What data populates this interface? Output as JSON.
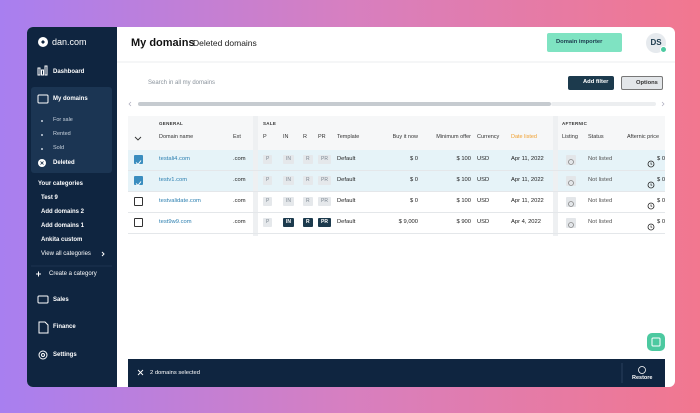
{
  "sidebar": {
    "brand": "dan.com",
    "dashboard": "Dashboard",
    "my_domains": "My domains",
    "sub_items": [
      "For sale",
      "Rented",
      "Sold",
      "Deleted"
    ],
    "categories_heading": "Your categories",
    "categories": [
      "Test 9",
      "Add domains 2",
      "Add domains 1",
      "Ankita custom"
    ],
    "view_all": "View all categories",
    "create": "Create a category",
    "bottom": [
      "Sales",
      "Finance",
      "Settings"
    ]
  },
  "header": {
    "title": "My domains",
    "subtitle": "Deleted domains",
    "importer": "Domain importer",
    "avatar": "DS"
  },
  "toolbar": {
    "search_placeholder": "Search in all my domains",
    "add_filter": "Add filter",
    "options": "Options"
  },
  "table": {
    "groups": [
      "GENERAL",
      "SALE",
      "AFTERNIC"
    ],
    "columns": [
      "Domain name",
      "Ext",
      "P",
      "IN",
      "R",
      "PR",
      "Template",
      "Buy it now",
      "Minimum offer",
      "Currency",
      "Date listed",
      "Listing",
      "Status",
      "Afternic price"
    ],
    "rows": [
      {
        "checked": true,
        "domain": "testali4.com",
        "ext": ".com",
        "badges": [
          {
            "label": "P",
            "active": false
          },
          {
            "label": "IN",
            "active": false
          },
          {
            "label": "R",
            "active": false
          },
          {
            "label": "PR",
            "active": false
          }
        ],
        "template": "Default",
        "buy_now": "$ 0",
        "min_offer": "$ 100",
        "currency": "USD",
        "date": "Apr 11, 2022",
        "status": "Not listed",
        "afternic_price": "$ 0"
      },
      {
        "checked": true,
        "domain": "testv1.com",
        "ext": ".com",
        "badges": [
          {
            "label": "P",
            "active": false
          },
          {
            "label": "IN",
            "active": false
          },
          {
            "label": "R",
            "active": false
          },
          {
            "label": "PR",
            "active": false
          }
        ],
        "template": "Default",
        "buy_now": "$ 0",
        "min_offer": "$ 100",
        "currency": "USD",
        "date": "Apr 11, 2022",
        "status": "Not listed",
        "afternic_price": "$ 0"
      },
      {
        "checked": false,
        "domain": "testvalidate.com",
        "ext": ".com",
        "badges": [
          {
            "label": "P",
            "active": false
          },
          {
            "label": "IN",
            "active": false
          },
          {
            "label": "R",
            "active": false
          },
          {
            "label": "PR",
            "active": false
          }
        ],
        "template": "Default",
        "buy_now": "$ 0",
        "min_offer": "$ 100",
        "currency": "USD",
        "date": "Apr 11, 2022",
        "status": "Not listed",
        "afternic_price": "$ 0"
      },
      {
        "checked": false,
        "domain": "test9w9.com",
        "ext": ".com",
        "badges": [
          {
            "label": "P",
            "active": false
          },
          {
            "label": "IN",
            "active": true
          },
          {
            "label": "R",
            "active": true
          },
          {
            "label": "PR",
            "active": true
          }
        ],
        "template": "Default",
        "buy_now": "$ 9,000",
        "min_offer": "$ 900",
        "currency": "USD",
        "date": "Apr 4, 2022",
        "status": "Not listed",
        "afternic_price": "$ 0"
      }
    ]
  },
  "footer": {
    "selected": "2 domains selected",
    "restore": "Restore"
  }
}
